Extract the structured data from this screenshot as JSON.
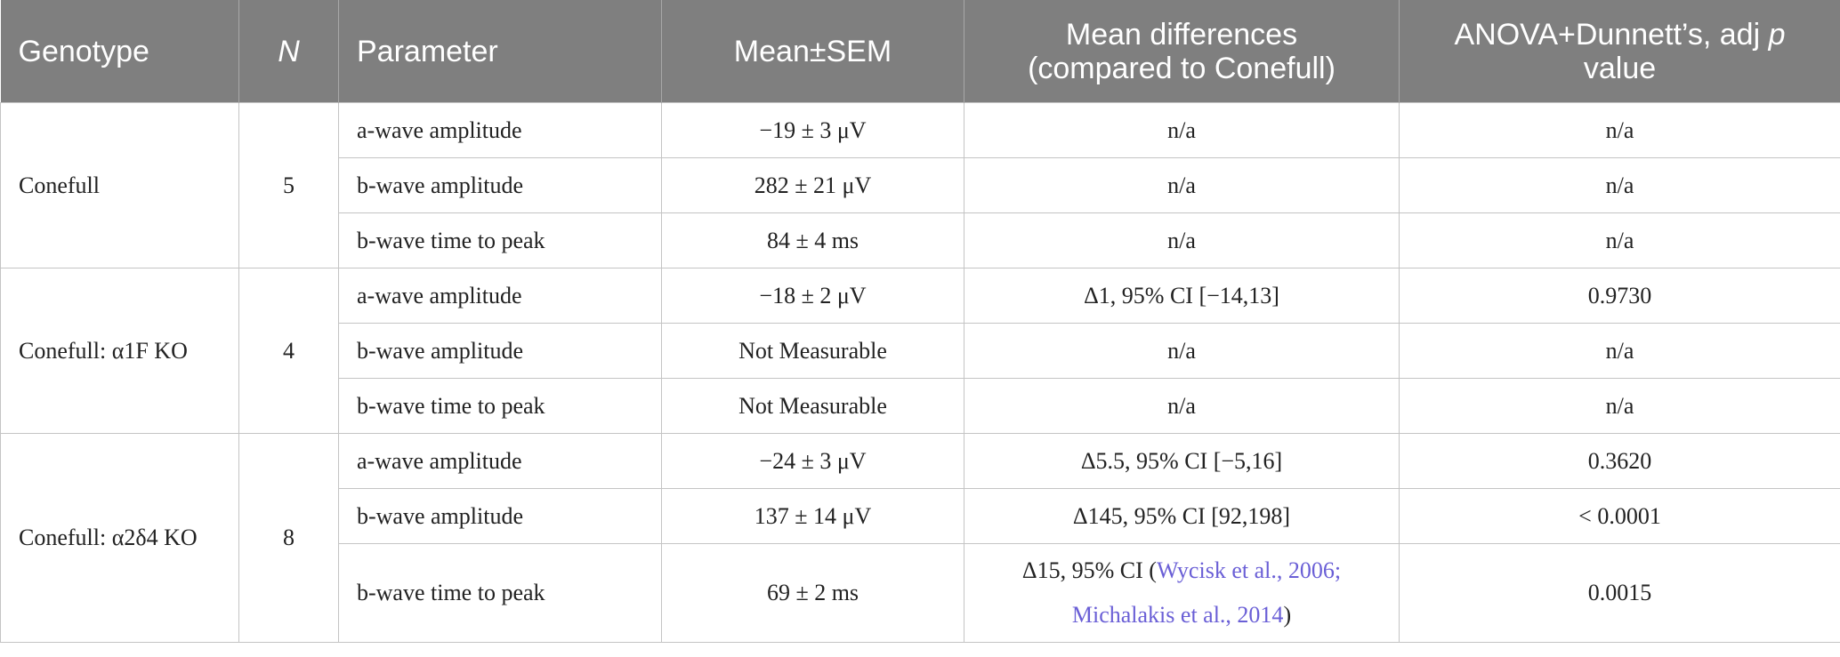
{
  "table": {
    "header": {
      "genotype": "Genotype",
      "n": "N",
      "parameter": "Parameter",
      "mean": "Mean±SEM",
      "diff": [
        "Mean differences",
        "(compared to Conefull)"
      ],
      "pvalue": {
        "before": "ANOVA+Dunnett’s, adj ",
        "italic": "p",
        "after": " value"
      }
    },
    "groups": [
      {
        "genotype": "Conefull",
        "n": "5",
        "rows": [
          {
            "parameter": "a-wave amplitude",
            "mean": "−19 ± 3 μV",
            "diff": "n/a",
            "p": "n/a"
          },
          {
            "parameter": "b-wave amplitude",
            "mean": "282 ± 21 μV",
            "diff": "n/a",
            "p": "n/a"
          },
          {
            "parameter": "b-wave time to peak",
            "mean": "84 ± 4 ms",
            "diff": "n/a",
            "p": "n/a"
          }
        ]
      },
      {
        "genotype": "Conefull: α1F KO",
        "n": "4",
        "rows": [
          {
            "parameter": "a-wave amplitude",
            "mean": "−18 ± 2 μV",
            "diff": "Δ1, 95% CI [−14,13]",
            "p": "0.9730"
          },
          {
            "parameter": "b-wave amplitude",
            "mean": "Not Measurable",
            "diff": "n/a",
            "p": "n/a"
          },
          {
            "parameter": "b-wave time to peak",
            "mean": "Not Measurable",
            "diff": "n/a",
            "p": "n/a"
          }
        ]
      },
      {
        "genotype": "Conefull: α2δ4 KO",
        "n": "8",
        "rows": [
          {
            "parameter": "a-wave amplitude",
            "mean": "−24 ± 3 μV",
            "diff": "Δ5.5, 95% CI [−5,16]",
            "p": "0.3620"
          },
          {
            "parameter": "b-wave amplitude",
            "mean": "137 ± 14 μV",
            "diff": "Δ145, 95% CI [92,198]",
            "p": "< 0.0001"
          },
          {
            "parameter": "b-wave time to peak",
            "mean": "69 ± 2 ms",
            "diff": {
              "before": "Δ15, 95% CI (",
              "links": [
                "Wycisk et al., 2006;",
                "Michalakis et al., 2014"
              ],
              "after": ")"
            },
            "p": "0.0015"
          }
        ]
      }
    ]
  }
}
